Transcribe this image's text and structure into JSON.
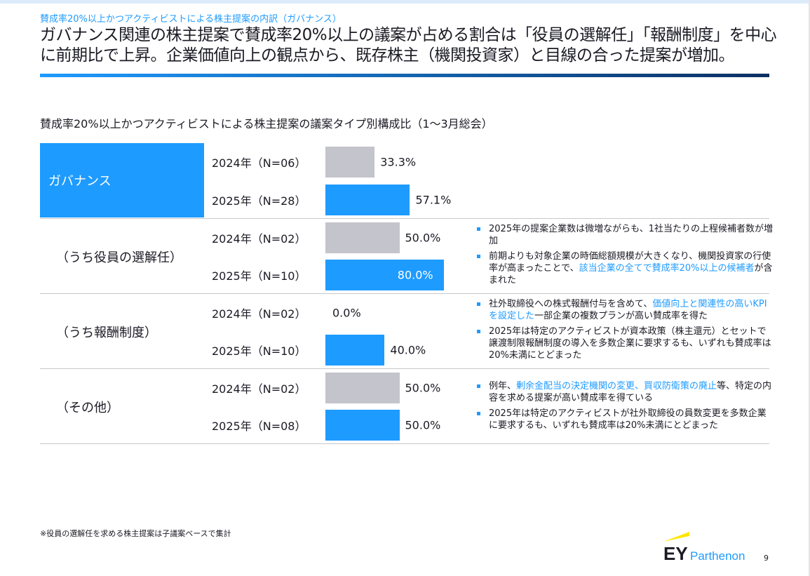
{
  "header": {
    "subtitle": "賛成率20%以上かつアクティビストによる株主提案の内訳（ガバナンス）",
    "title": "ガバナンス関連の株主提案で賛成率20%以上の議案が占める割合は「役員の選解任」「報酬制度」を中心に前期比で上昇。企業価値向上の観点から、既存株主（機関投資家）と目線の合った提案が増加。"
  },
  "chart_data": {
    "type": "bar",
    "orientation": "horizontal",
    "title": "賛成率20%以上かつアクティビストによる株主提案の議案タイプ別構成比（1〜3月総会）",
    "xlim": [
      0,
      100
    ],
    "unit": "%",
    "groups": [
      {
        "label": "ガバナンス",
        "rows": [
          {
            "label": "2024年（N=06）",
            "value": 33.3,
            "text": "33.3%"
          },
          {
            "label": "2025年（N=28）",
            "value": 57.1,
            "text": "57.1%"
          }
        ]
      },
      {
        "label": "（うち役員の選解任）",
        "rows": [
          {
            "label": "2024年（N=02）",
            "value": 50.0,
            "text": "50.0%"
          },
          {
            "label": "2025年（N=10）",
            "value": 80.0,
            "text": "80.0%"
          }
        ]
      },
      {
        "label": "（うち報酬制度）",
        "rows": [
          {
            "label": "2024年（N=02）",
            "value": 0.0,
            "text": "0.0%"
          },
          {
            "label": "2025年（N=10）",
            "value": 40.0,
            "text": "40.0%"
          }
        ]
      },
      {
        "label": "（その他）",
        "rows": [
          {
            "label": "2024年（N=02）",
            "value": 50.0,
            "text": "50.0%"
          },
          {
            "label": "2025年（N=08）",
            "value": 50.0,
            "text": "50.0%"
          }
        ]
      }
    ],
    "colors": {
      "2024": "#c4c4cc",
      "2025": "#1e9bff"
    }
  },
  "notes": [
    [
      [
        {
          "t": "2025年の提案企業数は微増ながらも、1社当たりの上程候補者数が増加"
        }
      ],
      [
        {
          "t": "前期よりも対象企業の時価総額規模が大きくなり、機関投資家の行使率が高まったことで、"
        },
        {
          "t": "該当企業の全てで賛成率20%以上の候補者",
          "hl": true
        },
        {
          "t": "が含まれた"
        }
      ]
    ],
    [
      [
        {
          "t": "社外取締役への株式報酬付与を含めて、"
        },
        {
          "t": "価値向上と関連性の高いKPIを設定した",
          "hl": true
        },
        {
          "t": "一部企業の複数プランが高い賛成率を得た"
        }
      ],
      [
        {
          "t": "2025年は特定のアクティビストが資本政策（株主還元）とセットで譲渡制限報酬制度の導入を多数企業に要求するも、いずれも賛成率は20%未満にとどまった"
        }
      ]
    ],
    [
      [
        {
          "t": "例年、"
        },
        {
          "t": "剰余金配当の決定機関の変更、買収防衛策の廃止",
          "hl": true
        },
        {
          "t": "等、特定の内容を求める提案が高い賛成率を得ている"
        }
      ],
      [
        {
          "t": "2025年は特定のアクティビストが社外取締役の員数変更を多数企業に要求するも、いずれも賛成率は20%未満にとどまった"
        }
      ]
    ]
  ],
  "footnote": "※役員の選解任を求める株主提案は子議案ベースで集計",
  "logo": {
    "mark": "EY",
    "name": "Parthenon",
    "accent": "#ffe600"
  },
  "page_number": "9"
}
